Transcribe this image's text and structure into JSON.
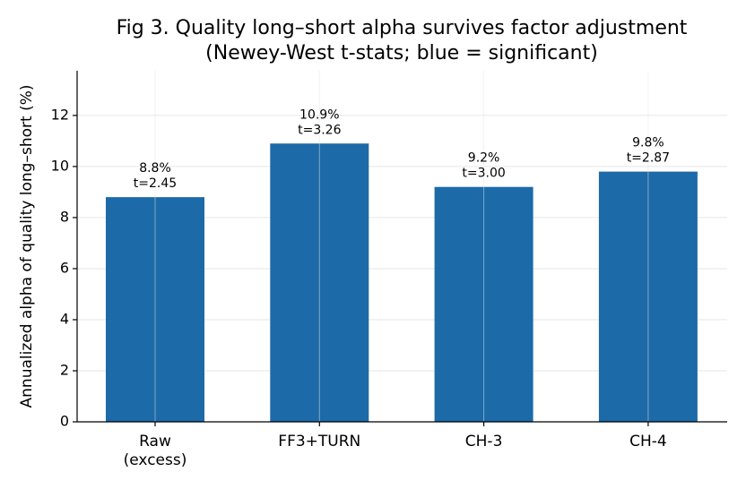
{
  "chart_data": {
    "type": "bar",
    "title": "Fig 3. Quality long–short alpha survives factor adjustment",
    "subtitle": "(Newey-West t-stats; blue = significant)",
    "y_label": "Annualized alpha of quality long–short (%)",
    "categories": [
      "Raw\n(excess)",
      "FF3+TURN",
      "CH-3",
      "CH-4"
    ],
    "values": [
      8.8,
      10.9,
      9.2,
      9.8
    ],
    "value_labels": [
      "8.8%",
      "10.9%",
      "9.2%",
      "9.8%"
    ],
    "t_labels": [
      "t=2.45",
      "t=3.26",
      "t=3.00",
      "t=2.87"
    ],
    "color": "#1c6aa8",
    "ylim": [
      0,
      13.75
    ],
    "yticks": [
      0,
      2,
      4,
      6,
      8,
      10,
      12
    ],
    "grid": true
  }
}
